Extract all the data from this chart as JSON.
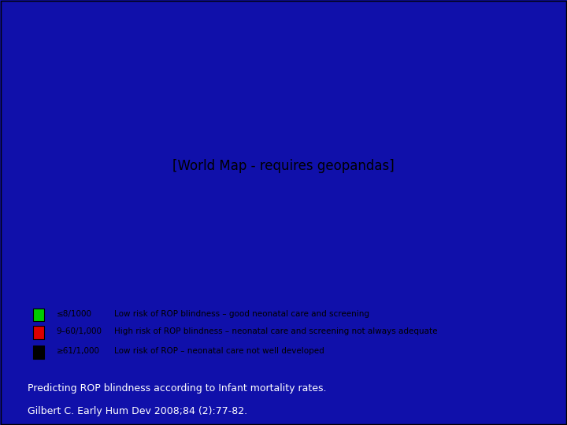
{
  "background_outer": "#1a1aaa",
  "background_slide": "#0000aa",
  "map_bg": "#ffffff",
  "legend_bg": "#ffffff",
  "caption_text_color": "#ffffff",
  "caption_line1": "Predicting ROP blindness according to Infant mortality rates.",
  "caption_line2": "Gilbert C. Early Hum Dev 2008;84 (2):77-82.",
  "legend_items": [
    {
      "color": "#00cc00",
      "label1": "≤8/1000",
      "label2": "Low risk of ROP blindness – good neonatal care and screening"
    },
    {
      "color": "#dd0000",
      "label1": "9–60/1,000",
      "label2": "High risk of ROP blindness – neonatal care and screening not always adequate"
    },
    {
      "color": "#000000",
      "label1": "≥61/1,000",
      "label2": "Low risk of ROP – neonatal care not well developed"
    }
  ],
  "map_image_path": null
}
